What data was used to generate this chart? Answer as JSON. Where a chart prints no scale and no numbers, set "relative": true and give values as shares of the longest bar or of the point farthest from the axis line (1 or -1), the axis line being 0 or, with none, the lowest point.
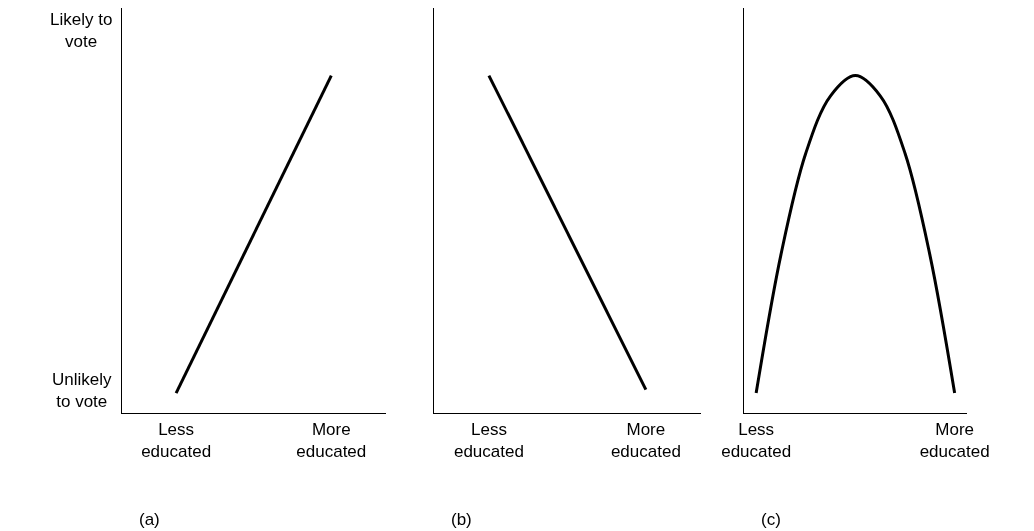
{
  "chart_data": [
    {
      "type": "line",
      "relative": true,
      "title": "(a)",
      "categories": [
        "Less\neducated",
        "More\neducated"
      ],
      "annotations": [
        "Likely to\nvote",
        "Unlikely\nto vote"
      ],
      "series": [
        {
          "color": "#000000",
          "values": [
            0.06,
            1
          ]
        }
      ]
    },
    {
      "type": "line",
      "relative": true,
      "title": "(b)",
      "categories": [
        "Less\neducated",
        "More\neducated"
      ],
      "series": [
        {
          "color": "#000000",
          "values": [
            1,
            0.07
          ]
        }
      ]
    },
    {
      "type": "line",
      "relative": true,
      "title": "(c)",
      "categories": [
        "Less\neducated",
        null,
        null,
        null,
        null,
        null,
        null,
        null,
        "More\neducated"
      ],
      "series": [
        {
          "color": "#000000",
          "values": [
            0.06,
            0.47,
            0.77,
            0.94,
            1,
            0.94,
            0.77,
            0.47,
            0.06
          ]
        }
      ]
    }
  ]
}
